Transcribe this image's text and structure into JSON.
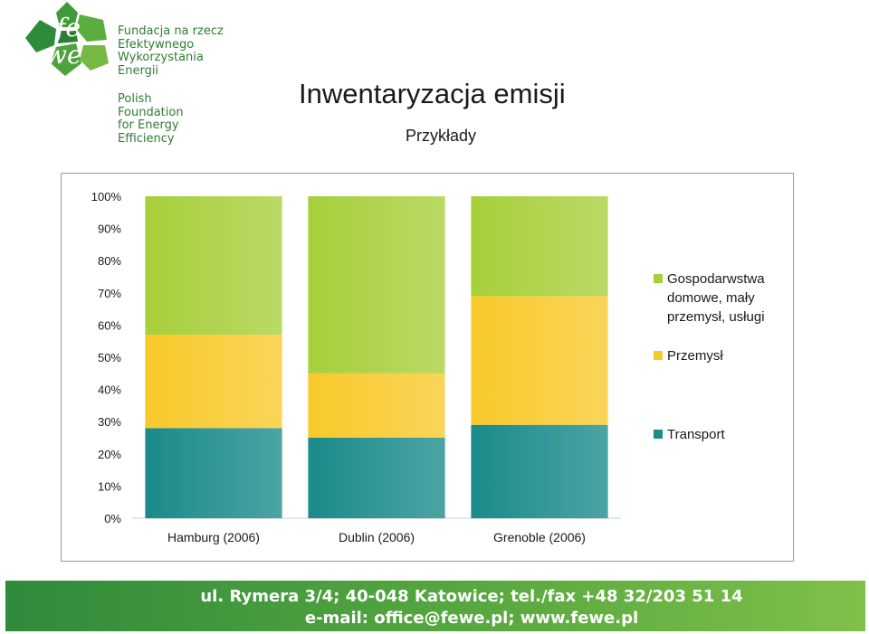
{
  "header": {
    "logo_text_pl": [
      "Fundacja na rzecz",
      "Efektywnego",
      "Wykorzystania",
      "Energii"
    ],
    "logo_text_en": [
      "Polish",
      "Foundation",
      "for Energy",
      "Efficiency"
    ],
    "title": "Inwentaryzacja emisji",
    "subtitle": "Przykłady"
  },
  "chart_data": {
    "type": "bar",
    "stacked": true,
    "normalized": true,
    "categories": [
      "Hamburg (2006)",
      "Dublin (2006)",
      "Grenoble (2006)"
    ],
    "series": [
      {
        "name": "Transport",
        "values": [
          28,
          25,
          29
        ],
        "color": "#1a8a8a"
      },
      {
        "name": "Przemysł",
        "values": [
          29,
          20,
          40
        ],
        "color": "#f8c92a"
      },
      {
        "name": "Gospodarwstwa domowe, mały przemysł, usługi",
        "values": [
          43,
          55,
          31
        ],
        "color": "#a6cf3a"
      }
    ],
    "legend_lines": {
      "Gospodarwstwa domowe, mały przemysł, usługi": [
        "Gospodarwstwa",
        "domowe, mały",
        "przemysł, usługi"
      ]
    },
    "ylim": [
      0,
      100
    ],
    "yticks": [
      "0%",
      "10%",
      "20%",
      "30%",
      "40%",
      "50%",
      "60%",
      "70%",
      "80%",
      "90%",
      "100%"
    ],
    "legend_position": "right",
    "grid": false
  },
  "footer": {
    "line1": "ul. Rymera 3/4; 40-048 Katowice; tel./fax +48 32/203 51 14",
    "line2": "e-mail: office@fewe.pl; www.fewe.pl"
  }
}
